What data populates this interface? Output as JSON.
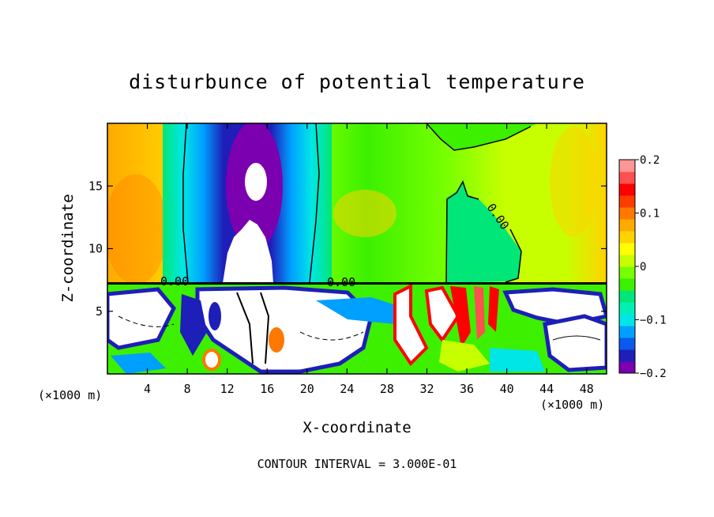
{
  "chart_data": {
    "type": "heatmap",
    "title": "disturbunce of potential temperature",
    "xlabel": "X-coordinate",
    "ylabel": "Z-coordinate",
    "x_unit": "(×1000 m)",
    "x_unit_right": "(×1000 m)",
    "xlim": [
      0,
      50
    ],
    "ylim": [
      0,
      20
    ],
    "x_ticks": [
      4,
      8,
      12,
      16,
      20,
      24,
      28,
      32,
      36,
      40,
      44,
      48
    ],
    "y_ticks": [
      5,
      10,
      15
    ],
    "colorbar": {
      "range": [
        -0.2,
        0.2
      ],
      "tick_values": [
        0.2,
        0.1,
        0,
        -0.1,
        -0.2
      ],
      "tick_labels": [
        "0.2",
        "0.1",
        "0",
        "−0.1",
        "−0.2"
      ],
      "colors": [
        "#7a00b0",
        "#1e1eb8",
        "#0a5af0",
        "#00a0ff",
        "#00e6e6",
        "#00f0b4",
        "#00e678",
        "#3cf000",
        "#78ff00",
        "#c8ff00",
        "#ffff00",
        "#ffd200",
        "#ffaa00",
        "#ff7800",
        "#ff3c00",
        "#ff0000",
        "#ff5050",
        "#ff9696"
      ]
    },
    "contour_labels": [
      "0.00",
      "0.00",
      "0.00"
    ],
    "footer": "CONTOUR INTERVAL = 3.000E-01"
  }
}
